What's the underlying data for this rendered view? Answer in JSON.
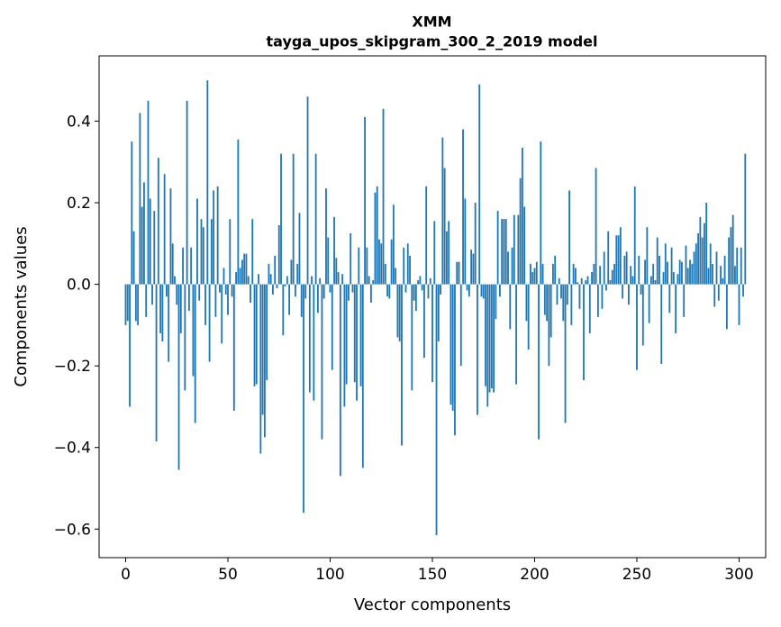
{
  "chart_data": {
    "type": "bar",
    "title": "ХММ",
    "subtitle": "tayga_upos_skipgram_300_2_2019 model",
    "xlabel": "Vector components",
    "ylabel": "Components values",
    "xlim": [
      -13,
      313
    ],
    "ylim": [
      -0.67,
      0.56
    ],
    "xticks": [
      0,
      50,
      100,
      150,
      200,
      250,
      300
    ],
    "xtick_labels": [
      "0",
      "50",
      "100",
      "150",
      "200",
      "250",
      "300"
    ],
    "yticks": [
      -0.6,
      -0.4,
      -0.2,
      0.0,
      0.2,
      0.4
    ],
    "ytick_labels": [
      "−0.6",
      "−0.4",
      "−0.2",
      "0.0",
      "0.2",
      "0.4"
    ],
    "bar_color": "#1f77b4",
    "grid": false,
    "values": [
      -0.1,
      -0.09,
      -0.3,
      0.35,
      0.13,
      -0.09,
      -0.1,
      0.42,
      0.19,
      0.25,
      -0.08,
      0.45,
      0.21,
      -0.05,
      0.18,
      -0.385,
      0.31,
      -0.12,
      -0.14,
      0.27,
      -0.03,
      -0.19,
      0.235,
      0.1,
      0.02,
      -0.05,
      -0.455,
      -0.12,
      0.09,
      -0.26,
      0.45,
      -0.065,
      0.09,
      -0.225,
      -0.34,
      0.21,
      -0.04,
      0.16,
      0.14,
      -0.1,
      0.5,
      -0.19,
      0.16,
      0.23,
      -0.08,
      0.24,
      -0.02,
      -0.145,
      0.04,
      -0.025,
      -0.075,
      0.16,
      -0.03,
      -0.31,
      0.03,
      0.355,
      0.04,
      0.06,
      0.075,
      0.075,
      0.02,
      -0.045,
      0.16,
      -0.25,
      -0.245,
      0.025,
      -0.415,
      -0.32,
      -0.375,
      -0.235,
      0.05,
      0.025,
      -0.025,
      0.07,
      -0.01,
      0.145,
      0.32,
      -0.125,
      -0.005,
      0.02,
      -0.075,
      0.06,
      0.32,
      -0.03,
      0.05,
      0.175,
      -0.08,
      -0.56,
      -0.035,
      0.46,
      -0.265,
      0.02,
      -0.285,
      0.32,
      -0.07,
      0.015,
      -0.38,
      -0.035,
      0.235,
      0.115,
      -0.02,
      -0.21,
      0.165,
      0.065,
      0.03,
      -0.47,
      0.025,
      -0.3,
      -0.245,
      -0.04,
      0.125,
      -0.02,
      -0.24,
      -0.285,
      0.09,
      -0.25,
      -0.45,
      0.41,
      0.09,
      0.02,
      -0.045,
      0.01,
      0.225,
      0.24,
      0.11,
      0.1,
      0.43,
      0.05,
      -0.03,
      -0.035,
      0.11,
      0.195,
      0.04,
      -0.13,
      -0.14,
      -0.395,
      0.09,
      -0.02,
      0.1,
      0.07,
      -0.26,
      -0.04,
      -0.065,
      0.01,
      0.02,
      -0.015,
      -0.18,
      0.24,
      -0.035,
      0.015,
      -0.24,
      0.155,
      -0.615,
      -0.14,
      -0.025,
      0.36,
      0.285,
      0.13,
      0.155,
      -0.295,
      -0.31,
      -0.37,
      0.055,
      0.055,
      -0.2,
      0.38,
      0.21,
      -0.015,
      -0.03,
      0.085,
      0.075,
      0.2,
      -0.32,
      0.49,
      -0.03,
      -0.035,
      -0.25,
      -0.3,
      -0.265,
      -0.255,
      -0.265,
      -0.085,
      0.18,
      -0.03,
      0.16,
      0.16,
      0.16,
      0.08,
      -0.11,
      0.09,
      0.17,
      -0.245,
      0.17,
      0.26,
      0.335,
      0.19,
      -0.09,
      -0.16,
      0.05,
      0.03,
      0.04,
      0.055,
      -0.38,
      0.35,
      0.05,
      -0.075,
      -0.09,
      -0.2,
      -0.13,
      0.05,
      0.07,
      -0.05,
      0.015,
      -0.035,
      -0.09,
      -0.34,
      -0.05,
      0.23,
      -0.1,
      0.05,
      0.04,
      0.005,
      -0.06,
      0.015,
      -0.235,
      0.01,
      0.02,
      -0.12,
      0.03,
      0.05,
      0.285,
      -0.08,
      0.045,
      -0.06,
      0.08,
      -0.015,
      0.13,
      0.01,
      0.035,
      0.05,
      0.12,
      0.12,
      0.14,
      -0.035,
      0.07,
      0.08,
      -0.05,
      0.045,
      0.02,
      0.24,
      -0.21,
      0.07,
      -0.025,
      -0.15,
      0.06,
      0.14,
      -0.095,
      0.02,
      0.05,
      0.01,
      0.115,
      0.07,
      -0.195,
      0.03,
      0.1,
      0.055,
      -0.07,
      0.09,
      0.03,
      -0.12,
      0.025,
      0.06,
      0.055,
      -0.08,
      0.095,
      0.04,
      0.06,
      0.05,
      0.08,
      0.1,
      0.125,
      0.165,
      0.115,
      0.15,
      0.2,
      0.04,
      0.1,
      0.05,
      -0.055,
      0.08,
      -0.04,
      0.045,
      0.015,
      0.07,
      -0.11,
      0.115,
      0.14,
      0.17,
      0.045,
      0.09,
      -0.1,
      0.09,
      -0.03,
      0.32
    ]
  }
}
